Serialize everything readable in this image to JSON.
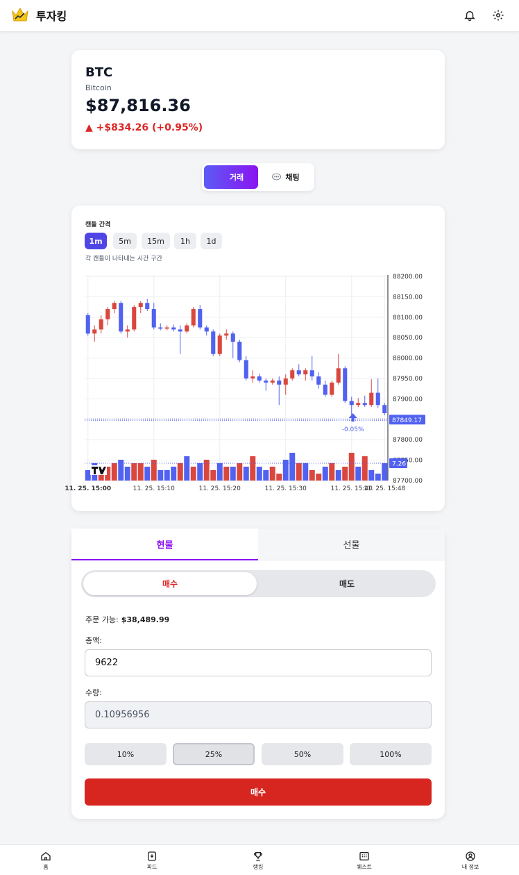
{
  "header": {
    "title": "투자킹"
  },
  "asset": {
    "symbol": "BTC",
    "name": "Bitcoin",
    "price": "$87,816.36",
    "change": "▲ +$834.26 (+0.95%)",
    "change_color": "#dc2626"
  },
  "modes": {
    "trade": "거래",
    "chat": "채팅",
    "trade_icon": "swap-icon",
    "chat_icon": "speech-bubble-icon"
  },
  "interval": {
    "title": "캔들 간격",
    "options": [
      "1m",
      "5m",
      "15m",
      "1h",
      "1d"
    ],
    "selected": "1m",
    "hint": "각 캔들이 나타내는 시간 구간"
  },
  "chart_data": {
    "type": "candlestick",
    "yticks": [
      "88200.00",
      "88150.00",
      "88100.00",
      "88050.00",
      "88000.00",
      "87950.00",
      "87900.00",
      "87850.00",
      "87800.00",
      "87750.00",
      "87700.00"
    ],
    "ylim": [
      87700,
      88200
    ],
    "xticks": [
      "11. 25. 15:00",
      "11. 25. 15:10",
      "11. 25. 15:20",
      "11. 25. 15:30",
      "11. 25. 15:40",
      "11. 25. 15:48"
    ],
    "last_price_label": "87849.17",
    "volume_label": "7.26",
    "marker_label": "-0.05%",
    "up_color": "#d9473f",
    "down_color": "#5161f0",
    "candles": [
      [
        88105,
        88110,
        88055,
        88060
      ],
      [
        88060,
        88080,
        88040,
        88070
      ],
      [
        88070,
        88105,
        88060,
        88095
      ],
      [
        88095,
        88125,
        88080,
        88120
      ],
      [
        88120,
        88140,
        88110,
        88135
      ],
      [
        88135,
        88140,
        88060,
        88065
      ],
      [
        88065,
        88080,
        88050,
        88070
      ],
      [
        88070,
        88130,
        88065,
        88125
      ],
      [
        88125,
        88140,
        88110,
        88135
      ],
      [
        88135,
        88145,
        88115,
        88120
      ],
      [
        88120,
        88135,
        88070,
        88075
      ],
      [
        88075,
        88085,
        88068,
        88072
      ],
      [
        88072,
        88080,
        88068,
        88075
      ],
      [
        88075,
        88082,
        88065,
        88070
      ],
      [
        88070,
        88080,
        88010,
        88065
      ],
      [
        88065,
        88085,
        88060,
        88080
      ],
      [
        88080,
        88125,
        88075,
        88120
      ],
      [
        88120,
        88130,
        88070,
        88075
      ],
      [
        88075,
        88080,
        88055,
        88065
      ],
      [
        88065,
        88070,
        88005,
        88010
      ],
      [
        88010,
        88060,
        88005,
        88055
      ],
      [
        88055,
        88070,
        88045,
        88060
      ],
      [
        88060,
        88065,
        88000,
        88040
      ],
      [
        88040,
        88045,
        87990,
        87995
      ],
      [
        87995,
        88005,
        87945,
        87950
      ],
      [
        87950,
        87970,
        87940,
        87955
      ],
      [
        87955,
        87962,
        87940,
        87945
      ],
      [
        87945,
        87950,
        87920,
        87940
      ],
      [
        87940,
        87950,
        87935,
        87945
      ],
      [
        87945,
        87955,
        87885,
        87935
      ],
      [
        87935,
        87960,
        87910,
        87950
      ],
      [
        87950,
        87975,
        87945,
        87970
      ],
      [
        87970,
        87985,
        87955,
        87960
      ],
      [
        87960,
        87975,
        87945,
        87970
      ],
      [
        87970,
        88005,
        87945,
        87955
      ],
      [
        87955,
        87965,
        87925,
        87935
      ],
      [
        87935,
        87945,
        87905,
        87910
      ],
      [
        87910,
        87945,
        87905,
        87940
      ],
      [
        87940,
        88010,
        87935,
        87975
      ],
      [
        87975,
        87980,
        87890,
        87895
      ],
      [
        87895,
        87905,
        87860,
        87885
      ],
      [
        87885,
        87902,
        87880,
        87890
      ],
      [
        87890,
        87908,
        87880,
        87885
      ],
      [
        87885,
        87948,
        87880,
        87915
      ],
      [
        87915,
        87950,
        87878,
        87885
      ],
      [
        87885,
        87890,
        87860,
        87865
      ]
    ],
    "volumes": [
      [
        3,
        0
      ],
      [
        5,
        0
      ],
      [
        3,
        1
      ],
      [
        4,
        1
      ],
      [
        5,
        1
      ],
      [
        6,
        0
      ],
      [
        4,
        0
      ],
      [
        5,
        1
      ],
      [
        5,
        1
      ],
      [
        4,
        0
      ],
      [
        6,
        1
      ],
      [
        3,
        0
      ],
      [
        3,
        0
      ],
      [
        4,
        0
      ],
      [
        5,
        1
      ],
      [
        7,
        0
      ],
      [
        4,
        1
      ],
      [
        5,
        0
      ],
      [
        6,
        1
      ],
      [
        3,
        1
      ],
      [
        5,
        0
      ],
      [
        4,
        1
      ],
      [
        4,
        0
      ],
      [
        5,
        1
      ],
      [
        4,
        0
      ],
      [
        7,
        1
      ],
      [
        4,
        0
      ],
      [
        3,
        0
      ],
      [
        4,
        1
      ],
      [
        2,
        1
      ],
      [
        6,
        0
      ],
      [
        8,
        0
      ],
      [
        5,
        1
      ],
      [
        5,
        0
      ],
      [
        3,
        1
      ],
      [
        2,
        1
      ],
      [
        4,
        0
      ],
      [
        5,
        1
      ],
      [
        3,
        0
      ],
      [
        4,
        1
      ],
      [
        8,
        1
      ],
      [
        4,
        0
      ],
      [
        7,
        1
      ],
      [
        3,
        0
      ],
      [
        2,
        0
      ],
      [
        5,
        0
      ]
    ]
  },
  "order": {
    "tabs": {
      "spot": "현물",
      "futures": "선물"
    },
    "sides": {
      "buy": "매수",
      "sell": "매도"
    },
    "available_label": "주문 가능:",
    "available_value": "$38,489.99",
    "total_label": "총액:",
    "total_value": "9622",
    "qty_label": "수량:",
    "qty_value": "0.10956956",
    "percents": [
      "10%",
      "25%",
      "50%",
      "100%"
    ],
    "selected_percent": "25%",
    "submit_label": "매수"
  },
  "nav": {
    "home": "홈",
    "feed": "피드",
    "ranking": "랭킹",
    "quest": "퀘스트",
    "profile": "내 정보"
  }
}
